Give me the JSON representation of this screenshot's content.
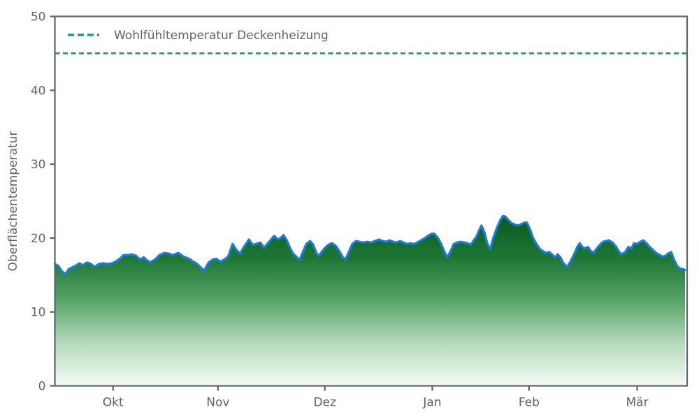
{
  "chart_data": {
    "type": "area",
    "title": "",
    "xlabel": "",
    "ylabel": "Oberflächentemperatur",
    "ylim": [
      0,
      50
    ],
    "grid": false,
    "legend_position": "upper-left",
    "ytick_values": [
      0,
      10,
      20,
      30,
      40,
      50
    ],
    "ytick_labels": [
      "0",
      "10",
      "20",
      "30",
      "40",
      "50"
    ],
    "xticks": [
      {
        "label": "Okt",
        "pos": 0.092
      },
      {
        "label": "Nov",
        "pos": 0.258
      },
      {
        "label": "Dez",
        "pos": 0.427
      },
      {
        "label": "Jan",
        "pos": 0.597
      },
      {
        "label": "Feb",
        "pos": 0.75
      },
      {
        "label": "Mär",
        "pos": 0.921
      }
    ],
    "threshold_line": {
      "value": 45,
      "label": "Wohlfühltemperatur Deckenheizung",
      "style": "dashed",
      "color": "#0ca678"
    },
    "colors": {
      "line": "#1d7dd6",
      "axis": "#5b6472",
      "threshold": "#0ca678",
      "gradient_stops": [
        {
          "offset": 0.0,
          "color": "#0a5a1f"
        },
        {
          "offset": 0.25,
          "color": "#1e7634"
        },
        {
          "offset": 0.5,
          "color": "#58a468"
        },
        {
          "offset": 0.75,
          "color": "#b6dabc"
        },
        {
          "offset": 1.0,
          "color": "#f4faf2"
        }
      ]
    },
    "series": [
      {
        "name": "Oberflächentemperatur",
        "points": [
          [
            0.0,
            16.5
          ],
          [
            0.006,
            16.2
          ],
          [
            0.011,
            15.5
          ],
          [
            0.017,
            15.1
          ],
          [
            0.022,
            15.8
          ],
          [
            0.029,
            16.1
          ],
          [
            0.034,
            16.3
          ],
          [
            0.039,
            16.6
          ],
          [
            0.044,
            16.3
          ],
          [
            0.051,
            16.7
          ],
          [
            0.057,
            16.5
          ],
          [
            0.063,
            16.1
          ],
          [
            0.07,
            16.5
          ],
          [
            0.076,
            16.6
          ],
          [
            0.084,
            16.5
          ],
          [
            0.091,
            16.6
          ],
          [
            0.098,
            16.9
          ],
          [
            0.103,
            17.2
          ],
          [
            0.109,
            17.7
          ],
          [
            0.115,
            17.7
          ],
          [
            0.122,
            17.8
          ],
          [
            0.129,
            17.6
          ],
          [
            0.135,
            17.1
          ],
          [
            0.141,
            17.4
          ],
          [
            0.146,
            17.0
          ],
          [
            0.151,
            16.7
          ],
          [
            0.159,
            17.1
          ],
          [
            0.166,
            17.7
          ],
          [
            0.174,
            18.0
          ],
          [
            0.181,
            17.9
          ],
          [
            0.187,
            17.7
          ],
          [
            0.196,
            18.0
          ],
          [
            0.204,
            17.5
          ],
          [
            0.213,
            17.2
          ],
          [
            0.22,
            16.8
          ],
          [
            0.226,
            16.5
          ],
          [
            0.233,
            15.9
          ],
          [
            0.237,
            15.6
          ],
          [
            0.244,
            16.7
          ],
          [
            0.251,
            17.1
          ],
          [
            0.256,
            17.2
          ],
          [
            0.263,
            16.8
          ],
          [
            0.269,
            17.1
          ],
          [
            0.275,
            17.5
          ],
          [
            0.282,
            19.2
          ],
          [
            0.288,
            18.4
          ],
          [
            0.294,
            17.9
          ],
          [
            0.3,
            18.8
          ],
          [
            0.308,
            19.8
          ],
          [
            0.314,
            19.1
          ],
          [
            0.319,
            19.2
          ],
          [
            0.326,
            19.4
          ],
          [
            0.332,
            18.7
          ],
          [
            0.338,
            19.3
          ],
          [
            0.344,
            19.9
          ],
          [
            0.348,
            20.3
          ],
          [
            0.354,
            19.8
          ],
          [
            0.358,
            20.0
          ],
          [
            0.363,
            20.4
          ],
          [
            0.368,
            19.7
          ],
          [
            0.373,
            18.7
          ],
          [
            0.378,
            17.9
          ],
          [
            0.384,
            17.4
          ],
          [
            0.388,
            17.0
          ],
          [
            0.394,
            18.2
          ],
          [
            0.399,
            19.2
          ],
          [
            0.405,
            19.6
          ],
          [
            0.41,
            19.1
          ],
          [
            0.415,
            18.0
          ],
          [
            0.419,
            17.6
          ],
          [
            0.425,
            18.3
          ],
          [
            0.43,
            18.8
          ],
          [
            0.436,
            19.2
          ],
          [
            0.44,
            19.3
          ],
          [
            0.446,
            18.9
          ],
          [
            0.451,
            18.3
          ],
          [
            0.457,
            17.4
          ],
          [
            0.461,
            17.1
          ],
          [
            0.467,
            18.2
          ],
          [
            0.472,
            19.2
          ],
          [
            0.478,
            19.6
          ],
          [
            0.483,
            19.5
          ],
          [
            0.489,
            19.4
          ],
          [
            0.496,
            19.5
          ],
          [
            0.502,
            19.4
          ],
          [
            0.508,
            19.6
          ],
          [
            0.514,
            19.8
          ],
          [
            0.52,
            19.6
          ],
          [
            0.526,
            19.5
          ],
          [
            0.531,
            19.7
          ],
          [
            0.537,
            19.5
          ],
          [
            0.542,
            19.4
          ],
          [
            0.548,
            19.6
          ],
          [
            0.553,
            19.4
          ],
          [
            0.559,
            19.2
          ],
          [
            0.564,
            19.3
          ],
          [
            0.57,
            19.2
          ],
          [
            0.575,
            19.4
          ],
          [
            0.581,
            19.7
          ],
          [
            0.587,
            20.0
          ],
          [
            0.592,
            20.3
          ],
          [
            0.598,
            20.6
          ],
          [
            0.602,
            20.6
          ],
          [
            0.608,
            20.0
          ],
          [
            0.613,
            19.2
          ],
          [
            0.619,
            18.0
          ],
          [
            0.623,
            17.4
          ],
          [
            0.629,
            18.4
          ],
          [
            0.633,
            19.2
          ],
          [
            0.639,
            19.4
          ],
          [
            0.644,
            19.5
          ],
          [
            0.65,
            19.4
          ],
          [
            0.655,
            19.3
          ],
          [
            0.66,
            19.1
          ],
          [
            0.664,
            19.6
          ],
          [
            0.669,
            20.2
          ],
          [
            0.673,
            21.0
          ],
          [
            0.677,
            21.7
          ],
          [
            0.682,
            20.7
          ],
          [
            0.686,
            19.3
          ],
          [
            0.691,
            18.5
          ],
          [
            0.696,
            20.1
          ],
          [
            0.702,
            21.5
          ],
          [
            0.706,
            22.3
          ],
          [
            0.711,
            23.0
          ],
          [
            0.715,
            22.9
          ],
          [
            0.719,
            22.5
          ],
          [
            0.725,
            22.0
          ],
          [
            0.731,
            21.8
          ],
          [
            0.735,
            21.7
          ],
          [
            0.741,
            21.9
          ],
          [
            0.745,
            22.1
          ],
          [
            0.749,
            22.1
          ],
          [
            0.754,
            21.2
          ],
          [
            0.759,
            20.0
          ],
          [
            0.765,
            19.1
          ],
          [
            0.77,
            18.5
          ],
          [
            0.775,
            18.2
          ],
          [
            0.779,
            18.0
          ],
          [
            0.785,
            18.1
          ],
          [
            0.79,
            17.7
          ],
          [
            0.794,
            17.4
          ],
          [
            0.798,
            17.8
          ],
          [
            0.803,
            17.3
          ],
          [
            0.807,
            16.6
          ],
          [
            0.813,
            16.1
          ],
          [
            0.818,
            16.8
          ],
          [
            0.824,
            17.8
          ],
          [
            0.829,
            18.8
          ],
          [
            0.833,
            19.3
          ],
          [
            0.837,
            18.8
          ],
          [
            0.841,
            18.6
          ],
          [
            0.846,
            18.8
          ],
          [
            0.85,
            18.3
          ],
          [
            0.855,
            18.0
          ],
          [
            0.86,
            18.6
          ],
          [
            0.866,
            19.2
          ],
          [
            0.87,
            19.5
          ],
          [
            0.875,
            19.6
          ],
          [
            0.879,
            19.7
          ],
          [
            0.885,
            19.4
          ],
          [
            0.89,
            18.9
          ],
          [
            0.895,
            18.2
          ],
          [
            0.899,
            17.8
          ],
          [
            0.905,
            18.1
          ],
          [
            0.91,
            18.8
          ],
          [
            0.915,
            18.6
          ],
          [
            0.919,
            19.3
          ],
          [
            0.924,
            19.2
          ],
          [
            0.929,
            19.5
          ],
          [
            0.934,
            19.7
          ],
          [
            0.94,
            19.2
          ],
          [
            0.944,
            18.8
          ],
          [
            0.949,
            18.4
          ],
          [
            0.954,
            18.0
          ],
          [
            0.96,
            17.7
          ],
          [
            0.964,
            17.5
          ],
          [
            0.969,
            17.6
          ],
          [
            0.973,
            17.9
          ],
          [
            0.978,
            18.1
          ],
          [
            0.982,
            17.2
          ],
          [
            0.987,
            16.3
          ],
          [
            0.991,
            15.9
          ],
          [
            0.996,
            15.8
          ],
          [
            1.0,
            15.7
          ]
        ]
      }
    ]
  }
}
